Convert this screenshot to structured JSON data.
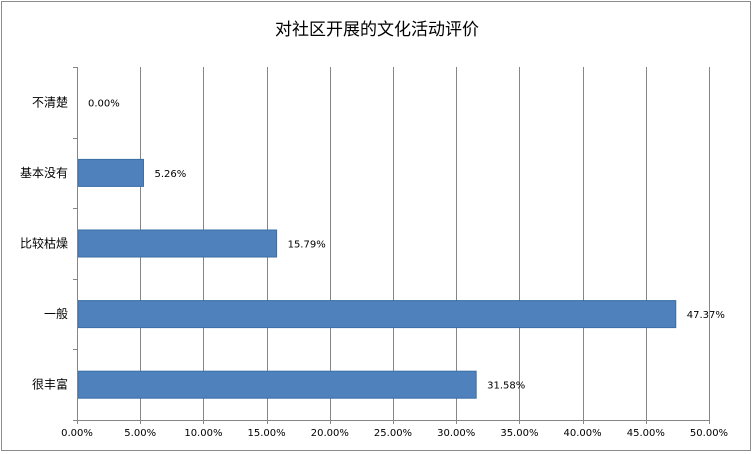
{
  "chart_data": {
    "type": "bar",
    "orientation": "horizontal",
    "title": "对社区开展的文化活动评价",
    "categories": [
      "很丰富",
      "一般",
      "比较枯燥",
      "基本没有",
      "不清楚"
    ],
    "values": [
      31.58,
      47.37,
      15.79,
      5.26,
      0.0
    ],
    "value_labels": [
      "31.58%",
      "47.37%",
      "15.79%",
      "5.26%",
      "0.00%"
    ],
    "xlim": [
      0,
      50
    ],
    "x_ticks": [
      0,
      5,
      10,
      15,
      20,
      25,
      30,
      35,
      40,
      45,
      50
    ],
    "x_tick_labels": [
      "0.00%",
      "5.00%",
      "10.00%",
      "15.00%",
      "20.00%",
      "25.00%",
      "30.00%",
      "35.00%",
      "40.00%",
      "45.00%",
      "50.00%"
    ],
    "grid": true,
    "legend": "none",
    "bar_color": "#4f81bd",
    "bar_border_color": "#3a6ea5",
    "grid_color": "#868686"
  }
}
